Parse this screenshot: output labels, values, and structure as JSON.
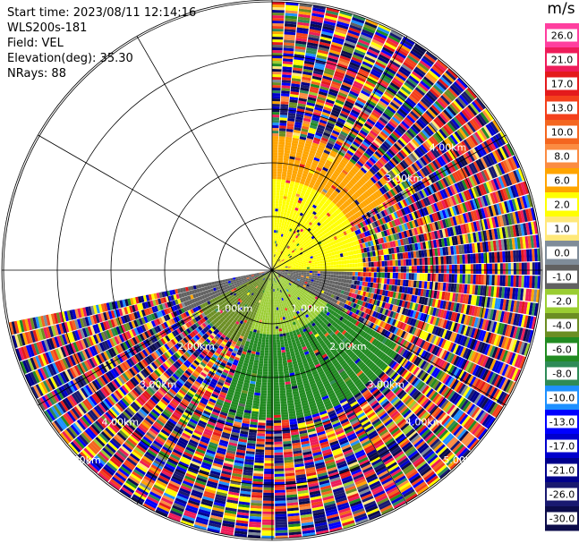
{
  "header": {
    "start_time": "Start time: 2023/08/11 12:14:16",
    "instrument": "WLS200s-181",
    "field": "Field: VEL",
    "elevation": "Elevation(deg): 35.30",
    "nrays": "NRays: 88"
  },
  "colorbar": {
    "unit": "m/s",
    "ticks": [
      "26.0",
      "21.0",
      "17.0",
      "13.0",
      "10.0",
      "8.0",
      "6.0",
      "2.0",
      "1.0",
      "0.0",
      "-1.0",
      "-2.0",
      "-4.0",
      "-6.0",
      "-8.0",
      "-10.0",
      "-13.0",
      "-17.0",
      "-21.0",
      "-26.0",
      "-30.0"
    ],
    "colors": [
      "#ff3f9f",
      "#ee1c5a",
      "#e41a1c",
      "#f4401c",
      "#f4661f",
      "#fb8c42",
      "#ffa500",
      "#ffff00",
      "#ffe87a",
      "#7f8c99",
      "#616161",
      "#9acd32",
      "#6b8e23",
      "#228b22",
      "#2e8b57",
      "#1e90ff",
      "#0000ff",
      "#0000cd",
      "#00008b",
      "#191970",
      "#0c0c4a"
    ]
  },
  "chart_data": {
    "type": "heatmap",
    "projection": "polar-ppi",
    "field": "VEL",
    "units": "m/s",
    "nrays": 88,
    "elevation_deg": 35.3,
    "range_ring_labels": [
      "1.00km",
      "2.00km",
      "3.00km",
      "4.00km",
      "5.00km"
    ],
    "vlim": [
      -30.0,
      26.0
    ],
    "azimuth_coverage_deg": [
      0,
      259
    ],
    "sectors": [
      {
        "azimuth_range_deg": [
          0,
          90
        ],
        "range_km": [
          0,
          1.7
        ],
        "velocity_ms": 2.0
      },
      {
        "azimuth_range_deg": [
          0,
          60
        ],
        "range_km": [
          1.7,
          2.5
        ],
        "velocity_ms": 6.0
      },
      {
        "azimuth_range_deg": [
          90,
          120
        ],
        "range_km": [
          0,
          1.5
        ],
        "velocity_ms": -1.0
      },
      {
        "azimuth_range_deg": [
          120,
          200
        ],
        "range_km": [
          0,
          1.2
        ],
        "velocity_ms": -2.0
      },
      {
        "azimuth_range_deg": [
          120,
          200
        ],
        "range_km": [
          1.2,
          2.8
        ],
        "velocity_ms": -6.0
      },
      {
        "azimuth_range_deg": [
          200,
          245
        ],
        "range_km": [
          0,
          1.5
        ],
        "velocity_ms": -4.0
      },
      {
        "azimuth_range_deg": [
          245,
          259
        ],
        "range_km": [
          0,
          1.8
        ],
        "velocity_ms": -1.0
      }
    ]
  }
}
